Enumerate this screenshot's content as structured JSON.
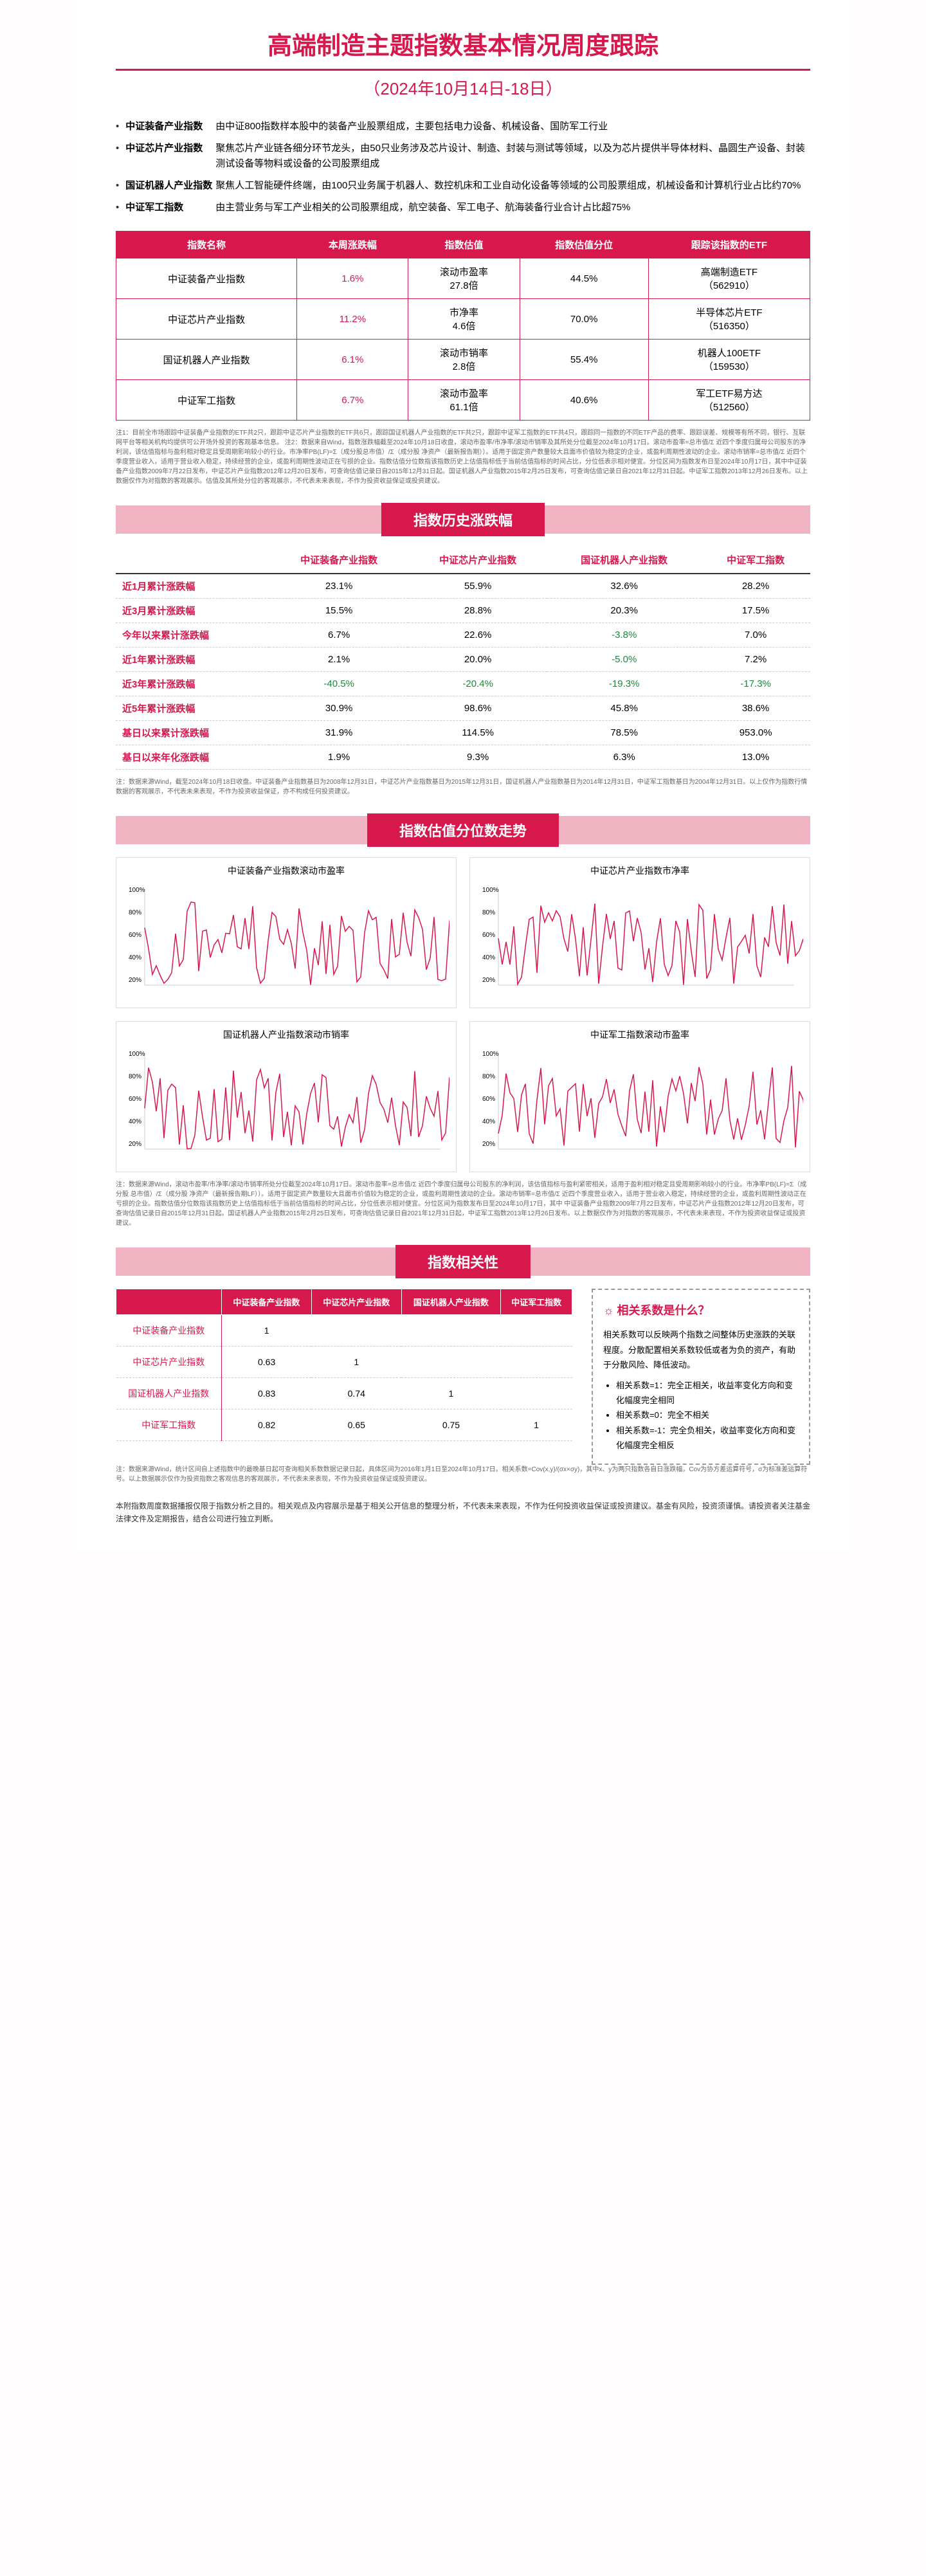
{
  "title": "高端制造主题指数基本情况周度跟踪",
  "subtitle": "（2024年10月14日-18日）",
  "descriptions": [
    {
      "label": "中证装备产业指数",
      "text": "由中证800指数样本股中的装备产业股票组成，主要包括电力设备、机械设备、国防军工行业"
    },
    {
      "label": "中证芯片产业指数",
      "text": "聚焦芯片产业链各细分环节龙头，由50只业务涉及芯片设计、制造、封装与测试等领域，以及为芯片提供半导体材料、晶圆生产设备、封装测试设备等物料或设备的公司股票组成"
    },
    {
      "label": "国证机器人产业指数",
      "text": "聚焦人工智能硬件终端，由100只业务属于机器人、数控机床和工业自动化设备等领域的公司股票组成，机械设备和计算机行业占比约70%"
    },
    {
      "label": "中证军工指数",
      "text": "由主营业务与军工产业相关的公司股票组成，航空装备、军工电子、航海装备行业合计占比超75%"
    }
  ],
  "table1": {
    "headers": [
      "指数名称",
      "本周涨跌幅",
      "指数估值",
      "指数估值分位",
      "跟踪该指数的ETF"
    ],
    "rows": [
      {
        "name": "中证装备产业指数",
        "change": "1.6%",
        "valuation": "滚动市盈率\n27.8倍",
        "percentile": "44.5%",
        "etf": "高端制造ETF\n（562910）"
      },
      {
        "name": "中证芯片产业指数",
        "change": "11.2%",
        "valuation": "市净率\n4.6倍",
        "percentile": "70.0%",
        "etf": "半导体芯片ETF\n（516350）"
      },
      {
        "name": "国证机器人产业指数",
        "change": "6.1%",
        "valuation": "滚动市销率\n2.8倍",
        "percentile": "55.4%",
        "etf": "机器人100ETF\n（159530）"
      },
      {
        "name": "中证军工指数",
        "change": "6.7%",
        "valuation": "滚动市盈率\n61.1倍",
        "percentile": "40.6%",
        "etf": "军工ETF易方达\n（512560）"
      }
    ]
  },
  "note1": "注1：目前全市场跟踪中证装备产业指数的ETF共2只，跟踪中证芯片产业指数的ETF共6只，跟踪国证机器人产业指数的ETF共2只，跟踪中证军工指数的ETF共4只，跟踪同一指数的不同ETF产品的费率、跟踪误差、规模等有所不同，银行、互联网平台等相关机构均提供可公开场外投资的客观基本信息。\n注2：数据来自Wind，指数涨跌幅截至2024年10月18日收盘，滚动市盈率/市净率/滚动市销率及其所处分位截至2024年10月17日。滚动市盈率=总市值/Σ 近四个季度归属母公司股东的净利润，该估值指标与盈利相对稳定且受周期影响较小的行业。市净率PB(LF)=Σ（成分股总市值）/Σ（成分股 净资产（最新报告期））。适用于固定资产数量较大且面市价值较为稳定的企业，或盈利周期性波动的企业。滚动市销率=总市值/Σ 近四个季度营业收入，适用于营业收入稳定，持续经营的企业，或盈利周期性波动正在亏损的企业。指数估值分位数指该指数历史上估值指标低于当前估值指标的时间占比，分位低表示相对便宜。分位区间为指数发布日至2024年10月17日，其中中证装备产业指数2009年7月22日发布，中证芯片产业指数2012年12月20日发布，可查询估值记录日自2015年12月31日起。国证机器人产业指数2015年2月25日发布，可查询估值记录日自2021年12月31日起。中证军工指数2013年12月26日发布。以上数据仅作为对指数的客观展示。估值及其所处分位的客观展示，不代表未来表现，不作为投资收益保证或投资建议。",
  "section2_title": "指数历史涨跌幅",
  "table2": {
    "headers": [
      "",
      "中证装备产业指数",
      "中证芯片产业指数",
      "国证机器人产业指数",
      "中证军工指数"
    ],
    "rows": [
      {
        "label": "近1月累计涨跌幅",
        "values": [
          "23.1%",
          "55.9%",
          "32.6%",
          "28.2%"
        ]
      },
      {
        "label": "近3月累计涨跌幅",
        "values": [
          "15.5%",
          "28.8%",
          "20.3%",
          "17.5%"
        ]
      },
      {
        "label": "今年以来累计涨跌幅",
        "values": [
          "6.7%",
          "22.6%",
          "-3.8%",
          "7.0%"
        ]
      },
      {
        "label": "近1年累计涨跌幅",
        "values": [
          "2.1%",
          "20.0%",
          "-5.0%",
          "7.2%"
        ]
      },
      {
        "label": "近3年累计涨跌幅",
        "values": [
          "-40.5%",
          "-20.4%",
          "-19.3%",
          "-17.3%"
        ]
      },
      {
        "label": "近5年累计涨跌幅",
        "values": [
          "30.9%",
          "98.6%",
          "45.8%",
          "38.6%"
        ]
      },
      {
        "label": "基日以来累计涨跌幅",
        "values": [
          "31.9%",
          "114.5%",
          "78.5%",
          "953.0%"
        ]
      },
      {
        "label": "基日以来年化涨跌幅",
        "values": [
          "1.9%",
          "9.3%",
          "6.3%",
          "13.0%"
        ]
      }
    ]
  },
  "note2": "注：数据来源Wind，截至2024年10月18日收盘。中证装备产业指数基日为2008年12月31日，中证芯片产业指数基日为2015年12月31日，国证机器人产业指数基日为2014年12月31日，中证军工指数基日为2004年12月31日。以上仅作为指数行情数据的客观展示，不代表未来表现，不作为投资收益保证，亦不构成任何投资建议。",
  "section3_title": "指数估值分位数走势",
  "charts": [
    {
      "title": "中证装备产业指数滚动市盈率",
      "color": "#d6184d"
    },
    {
      "title": "中证芯片产业指数市净率",
      "color": "#d6184d"
    },
    {
      "title": "国证机器人产业指数滚动市销率",
      "color": "#d6184d"
    },
    {
      "title": "中证军工指数滚动市盈率",
      "color": "#d6184d"
    }
  ],
  "note3": "注：数据来源Wind，滚动市盈率/市净率/滚动市销率所处分位截至2024年10月17日。滚动市盈率=总市值/Σ 近四个季度归属母公司股东的净利润，该估值指标与盈利紧密相关，适用于盈利相对稳定且受周期影响较小的行业。市净率PB(LF)=Σ（成分股 总市值）/Σ（成分股 净资产（最新报告期LF））。适用于固定资产数量较大且面市价值较为稳定的企业，或盈利周期性波动的企业。滚动市销率=总市值/Σ 近四个季度营业收入，适用于营业收入稳定，持续经营的企业，或盈利周期性波动正在亏损的企业。指数估值分位数指该指数历史上估值指标低于当前估值指标的时间占比，分位低表示相对便宜。分位区间为指数发布日至2024年10月17日，其中 中证装备产业指数2009年7月22日发布，中证芯片产业指数2012年12月20日发布，可查询估值记录日自2015年12月31日起。国证机器人产业指数2015年2月25日发布，可查询估值记录日自2021年12月31日起，中证军工指数2013年12月26日发布。以上数据仅作为对指数的客观展示，不代表未来表现，不作为投资收益保证或投资建议。",
  "section4_title": "指数相关性",
  "table3": {
    "headers": [
      "",
      "中证装备产业指数",
      "中证芯片产业指数",
      "国证机器人产业指数",
      "中证军工指数"
    ],
    "rows": [
      {
        "label": "中证装备产业指数",
        "values": [
          "1",
          "",
          "",
          ""
        ]
      },
      {
        "label": "中证芯片产业指数",
        "values": [
          "0.63",
          "1",
          "",
          ""
        ]
      },
      {
        "label": "国证机器人产业指数",
        "values": [
          "0.83",
          "0.74",
          "1",
          ""
        ]
      },
      {
        "label": "中证军工指数",
        "values": [
          "0.82",
          "0.65",
          "0.75",
          "1"
        ]
      }
    ]
  },
  "corr_info": {
    "title": "相关系数是什么？",
    "intro": "相关系数可以反映两个指数之间整体历史涨跌的关联程度。分散配置相关系数较低或者为负的资产，有助于分散风险、降低波动。",
    "bullets": [
      "相关系数=1：完全正相关，收益率变化方向和变化幅度完全相同",
      "相关系数=0：完全不相关",
      "相关系数=-1：完全负相关，收益率变化方向和变化幅度完全相反"
    ]
  },
  "note4": "注：数据来源Wind，统计区间自上述指数中的最晚基日起可查询相关系数数据记录日起，具体区间为2016年1月1日至2024年10月17日。相关系数=Cov(x,y)/(σx×σy)，其中x、y为两只指数各自日涨跌幅，Cov为协方差运算符号，σ为标准差运算符号。以上数据展示仅作为投资指数之客观信息的客观展示，不代表未来表现，不作为投资收益保证或投资建议。",
  "footer": "本附指数周度数据播报仅限于指数分析之目的。相关观点及内容展示是基于相关公开信息的整理分析，不代表未来表现，不作为任何投资收益保证或投资建议。基金有风险，投资须谨慎。请投资者关注基金法律文件及定期报告，结合公司进行独立判断。"
}
